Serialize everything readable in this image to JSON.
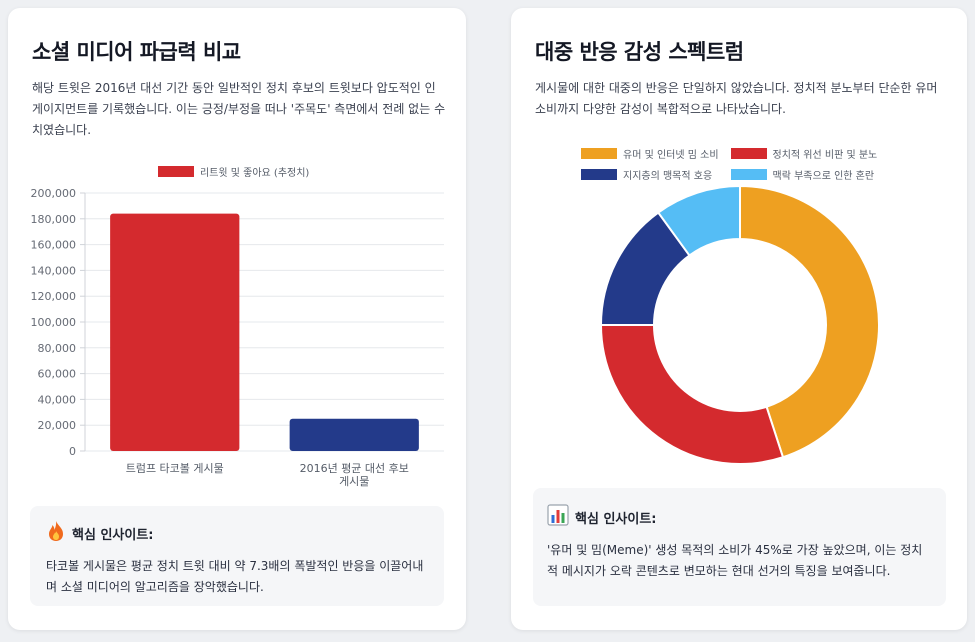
{
  "left_card": {
    "title": "소셜 미디어 파급력 비교",
    "description": "해당 트윗은 2016년 대선 기간 동안 일반적인 정치 후보의 트윗보다 압도적인 인게이지먼트를 기록했습니다. 이는 긍정/부정을 떠나 '주목도' 측면에서 전례 없는 수치였습니다.",
    "insight_icon": "fire-icon",
    "insight_title": "핵심 인사이트:",
    "insight_text": "타코볼 게시물은 평균 정치 트윗 대비 약 7.3배의 폭발적인 반응을 이끌어내며 소셜 미디어의 알고리즘을 장악했습니다."
  },
  "right_card": {
    "title": "대중 반응 감성 스펙트럼",
    "description": "게시물에 대한 대중의 반응은 단일하지 않았습니다. 정치적 분노부터 단순한 유머 소비까지 다양한 감성이 복합적으로 나타났습니다.",
    "insight_icon": "bar-chart-icon",
    "insight_title": "핵심 인사이트:",
    "insight_text": "'유머 및 밈(Meme)' 생성 목적의 소비가 45%로 가장 높았으며, 이는 정치적 메시지가 오락 콘텐츠로 변모하는 현대 선거의 특징을 보여줍니다."
  },
  "chart_data": [
    {
      "type": "bar",
      "categories": [
        [
          "트럼프 타코볼 게시물"
        ],
        [
          "2016년 평균 대선 후보",
          "게시물"
        ]
      ],
      "series": [
        {
          "name": "리트윗 및 좋아요 (추정치)",
          "values": [
            184000,
            25000
          ]
        }
      ],
      "colors": [
        "#d42a2e",
        "#233a8a"
      ],
      "ylim": [
        0,
        200000
      ],
      "yticks": [
        "0",
        "20,000",
        "40,000",
        "60,000",
        "80,000",
        "100,000",
        "120,000",
        "140,000",
        "160,000",
        "180,000",
        "200,000"
      ],
      "grid": true,
      "legend": "top"
    },
    {
      "type": "pie",
      "donut": true,
      "labels": [
        "유머 및 인터넷 밈 소비",
        "정치적 위선 비판 및 분노",
        "지지층의 맹목적 호응",
        "맥락 부족으로 인한 혼란"
      ],
      "values": [
        45,
        30,
        15,
        10
      ],
      "colors": [
        "#eea021",
        "#d42a2e",
        "#233a8a",
        "#55bdf5"
      ],
      "legend": "top"
    }
  ]
}
